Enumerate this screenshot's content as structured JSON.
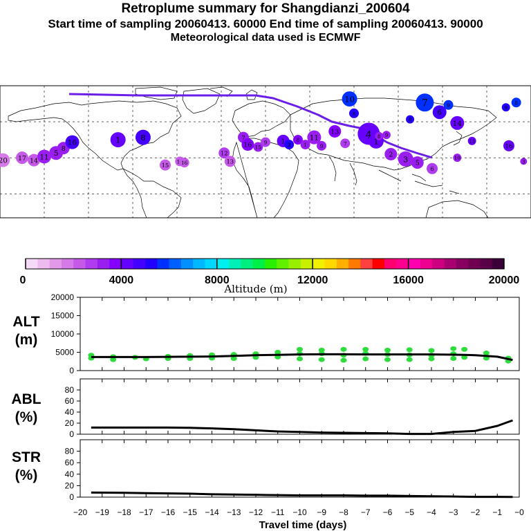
{
  "header": {
    "title": "Retroplume summary for Shangdianzi_200604",
    "sampling_line": "Start time of sampling 20060413. 60000     End time of sampling 20060413. 90000",
    "met_line": "Meteorological data used is ECMWF"
  },
  "colors": {
    "line": "#000000",
    "alt_marker": "#2edc3c",
    "track": "#6a1ee8",
    "colorbar": [
      "#f6d9f6",
      "#eebbee",
      "#e29ae8",
      "#d57ae8",
      "#c55ae8",
      "#b03cef",
      "#9a1eef",
      "#8400ff",
      "#6600ff",
      "#4400ff",
      "#2200ff",
      "#0030ff",
      "#0060ff",
      "#0090ff",
      "#00b8ff",
      "#00d8ff",
      "#00f0f0",
      "#00f0b8",
      "#00f080",
      "#00f048",
      "#28f000",
      "#60f000",
      "#98f000",
      "#c8f000",
      "#f0f000",
      "#ffd800",
      "#ffb000",
      "#ff7800",
      "#ff4040",
      "#ff0000",
      "#ff0070",
      "#ff0090",
      "#ff00b0",
      "#ee0090",
      "#cc0080",
      "#a80070",
      "#880060",
      "#700050",
      "#5a0048",
      "#3c0038"
    ]
  },
  "map": {
    "markers": [
      {
        "label": "20",
        "lon": -178,
        "lat": 28,
        "alt": 1800,
        "size": 10
      },
      {
        "label": "17",
        "lon": -165,
        "lat": 30,
        "alt": 2200,
        "size": 9
      },
      {
        "label": "14",
        "lon": -157,
        "lat": 28,
        "alt": 2400,
        "size": 9
      },
      {
        "label": "11",
        "lon": -150,
        "lat": 31,
        "alt": 3000,
        "size": 10
      },
      {
        "label": "5",
        "lon": -142,
        "lat": 34,
        "alt": 3200,
        "size": 10
      },
      {
        "label": "8",
        "lon": -137,
        "lat": 38,
        "alt": 3400,
        "size": 9
      },
      {
        "label": "16",
        "lon": -131,
        "lat": 43,
        "alt": 4500,
        "size": 10
      },
      {
        "label": "1",
        "lon": -100,
        "lat": 45,
        "alt": 4200,
        "size": 11
      },
      {
        "label": "8",
        "lon": -83,
        "lat": 47,
        "alt": 4600,
        "size": 11
      },
      {
        "label": "15",
        "lon": -68,
        "lat": 24,
        "alt": 2200,
        "size": 8
      },
      {
        "label": "17",
        "lon": -58,
        "lat": 27,
        "alt": 2400,
        "size": 7
      },
      {
        "label": "16",
        "lon": -55,
        "lat": 26,
        "alt": 2200,
        "size": 7
      },
      {
        "label": "12",
        "lon": -28,
        "lat": 34,
        "alt": 2600,
        "size": 8
      },
      {
        "label": "13",
        "lon": -24,
        "lat": 27,
        "alt": 2300,
        "size": 8
      },
      {
        "label": "7",
        "lon": -15,
        "lat": 47,
        "alt": 3400,
        "size": 8
      },
      {
        "label": "16",
        "lon": -12,
        "lat": 41,
        "alt": 3600,
        "size": 9
      },
      {
        "label": "15",
        "lon": -5,
        "lat": 39,
        "alt": 3000,
        "size": 7
      },
      {
        "label": "9",
        "lon": 0,
        "lat": 43,
        "alt": 2800,
        "size": 7
      },
      {
        "label": "1",
        "lon": 12,
        "lat": 44,
        "alt": 4400,
        "size": 9
      },
      {
        "label": "3",
        "lon": 16,
        "lat": 41,
        "alt": 5200,
        "size": 7
      },
      {
        "label": "8",
        "lon": 22,
        "lat": 45,
        "alt": 3600,
        "size": 7
      },
      {
        "label": "1",
        "lon": 27,
        "lat": 41,
        "alt": 3400,
        "size": 7
      },
      {
        "label": "11",
        "lon": 33,
        "lat": 47,
        "alt": 3000,
        "size": 10
      },
      {
        "label": "9",
        "lon": 38,
        "lat": 40,
        "alt": 3200,
        "size": 7
      },
      {
        "label": "13",
        "lon": 47,
        "lat": 52,
        "alt": 3600,
        "size": 9
      },
      {
        "label": "7",
        "lon": 54,
        "lat": 42,
        "alt": 2800,
        "size": 7
      },
      {
        "label": "10",
        "lon": 57,
        "lat": 79,
        "alt": 5600,
        "size": 11
      },
      {
        "label": "8",
        "lon": 60,
        "lat": 67,
        "alt": 5000,
        "size": 7
      },
      {
        "label": "4",
        "lon": 70,
        "lat": 50,
        "alt": 4300,
        "size": 16
      },
      {
        "label": "1",
        "lon": 75,
        "lat": 44,
        "alt": 4000,
        "size": 11
      },
      {
        "label": "8",
        "lon": 77,
        "lat": 48,
        "alt": 3200,
        "size": 6
      },
      {
        "label": "9",
        "lon": 82,
        "lat": 49,
        "alt": 3000,
        "size": 6
      },
      {
        "label": "2",
        "lon": 85,
        "lat": 33,
        "alt": 3000,
        "size": 9
      },
      {
        "label": "3",
        "lon": 95,
        "lat": 29,
        "alt": 3200,
        "size": 11
      },
      {
        "label": "5",
        "lon": 103,
        "lat": 26,
        "alt": 3000,
        "size": 9
      },
      {
        "label": "8",
        "lon": 98,
        "lat": 62,
        "alt": 5400,
        "size": 6
      },
      {
        "label": "7",
        "lon": 108,
        "lat": 76,
        "alt": 5800,
        "size": 13
      },
      {
        "label": "6",
        "lon": 118,
        "lat": 68,
        "alt": 4600,
        "size": 10
      },
      {
        "label": "9",
        "lon": 124,
        "lat": 74,
        "alt": 5600,
        "size": 7
      },
      {
        "label": "14",
        "lon": 130,
        "lat": 59,
        "alt": 4400,
        "size": 10
      },
      {
        "label": "10",
        "lon": 130,
        "lat": 30,
        "alt": 3200,
        "size": 6
      },
      {
        "label": "13",
        "lon": 140,
        "lat": 44,
        "alt": 4200,
        "size": 6
      },
      {
        "label": "8",
        "lon": 170,
        "lat": 76,
        "alt": 5800,
        "size": 7
      },
      {
        "label": "9",
        "lon": 163,
        "lat": 72,
        "alt": 5400,
        "size": 6
      },
      {
        "label": "16",
        "lon": 165,
        "lat": 40,
        "alt": 4000,
        "size": 8
      },
      {
        "label": "3",
        "lon": 175,
        "lat": 27,
        "alt": 3200,
        "size": 5
      },
      {
        "label": "6",
        "lon": 113,
        "lat": 21,
        "alt": 2800,
        "size": 8
      }
    ]
  },
  "colorbar": {
    "min": 0,
    "max": 20000,
    "ticks": [
      "0",
      "4000",
      "8000",
      "12000",
      "16000",
      "20000"
    ],
    "label": "Altitude (m)"
  },
  "chart_data": [
    {
      "type": "line",
      "title": "ALT (m)",
      "title_parts": [
        "ALT",
        "(m)"
      ],
      "ylabel": "ALT (m)",
      "ylim": [
        0,
        20000
      ],
      "yticks": [
        "20000",
        "15000",
        "10000",
        "5000",
        "0"
      ],
      "x": [
        -19.5,
        -18,
        -17,
        -16,
        -15,
        -14,
        -13,
        -12,
        -11,
        -10,
        -9,
        -8,
        -7,
        -6,
        -5,
        -4,
        -3,
        -2.5,
        -2,
        -1,
        -0.3
      ],
      "series": [
        {
          "name": "mean altitude",
          "values": [
            3700,
            3700,
            3700,
            3750,
            3800,
            3850,
            4000,
            4200,
            4300,
            4400,
            4450,
            4450,
            4400,
            4400,
            4400,
            4400,
            4350,
            4300,
            4200,
            3800,
            2900
          ]
        }
      ],
      "scatter_points": [
        {
          "x": -19.5,
          "y": 3400
        },
        {
          "x": -19.5,
          "y": 4200
        },
        {
          "x": -18.5,
          "y": 3000
        },
        {
          "x": -18.5,
          "y": 3800
        },
        {
          "x": -17.5,
          "y": 3600
        },
        {
          "x": -17,
          "y": 3200
        },
        {
          "x": -16,
          "y": 3900
        },
        {
          "x": -16,
          "y": 3300
        },
        {
          "x": -15,
          "y": 4100
        },
        {
          "x": -15,
          "y": 3300
        },
        {
          "x": -14,
          "y": 4300
        },
        {
          "x": -14,
          "y": 3400
        },
        {
          "x": -13,
          "y": 4400
        },
        {
          "x": -13,
          "y": 3300
        },
        {
          "x": -12,
          "y": 4600
        },
        {
          "x": -12,
          "y": 3600
        },
        {
          "x": -11,
          "y": 5000
        },
        {
          "x": -11,
          "y": 3700
        },
        {
          "x": -10,
          "y": 5800
        },
        {
          "x": -10,
          "y": 4600
        },
        {
          "x": -10,
          "y": 3200
        },
        {
          "x": -9,
          "y": 5600
        },
        {
          "x": -9,
          "y": 4600
        },
        {
          "x": -9,
          "y": 3000
        },
        {
          "x": -8,
          "y": 5800
        },
        {
          "x": -8,
          "y": 4200
        },
        {
          "x": -8,
          "y": 2800
        },
        {
          "x": -7,
          "y": 5800
        },
        {
          "x": -7,
          "y": 4700
        },
        {
          "x": -7,
          "y": 3200
        },
        {
          "x": -6,
          "y": 5600
        },
        {
          "x": -6,
          "y": 4400
        },
        {
          "x": -6,
          "y": 3000
        },
        {
          "x": -5,
          "y": 5700
        },
        {
          "x": -5,
          "y": 4300
        },
        {
          "x": -5,
          "y": 3000
        },
        {
          "x": -4,
          "y": 5500
        },
        {
          "x": -4,
          "y": 4200
        },
        {
          "x": -4,
          "y": 3200
        },
        {
          "x": -3,
          "y": 6000
        },
        {
          "x": -3,
          "y": 4600
        },
        {
          "x": -3,
          "y": 3300
        },
        {
          "x": -2.5,
          "y": 5800
        },
        {
          "x": -2.5,
          "y": 3600
        },
        {
          "x": -1.5,
          "y": 4800
        },
        {
          "x": -1.5,
          "y": 3400
        },
        {
          "x": -0.5,
          "y": 3400
        },
        {
          "x": -0.5,
          "y": 2600
        }
      ]
    },
    {
      "type": "line",
      "title": "ABL (%)",
      "title_parts": [
        "ABL",
        "(%)"
      ],
      "ylabel": "ABL (%)",
      "ylim": [
        0,
        100
      ],
      "yticks": [
        "80",
        "60",
        "40",
        "20",
        "0"
      ],
      "x": [
        -19.5,
        -18,
        -17,
        -16,
        -15,
        -14,
        -13,
        -12,
        -11,
        -10,
        -9,
        -8,
        -7,
        -6,
        -5,
        -4,
        -3,
        -2.5,
        -2,
        -1,
        -0.3
      ],
      "series": [
        {
          "name": "ABL fraction",
          "values": [
            12,
            12,
            12,
            12,
            11.5,
            10.5,
            9,
            7,
            5,
            4,
            3,
            2.5,
            2,
            1.5,
            0.5,
            0.5,
            4,
            5,
            6,
            15,
            25
          ]
        }
      ]
    },
    {
      "type": "line",
      "title": "STR (%)",
      "title_parts": [
        "STR",
        "(%)"
      ],
      "ylabel": "STR (%)",
      "ylim": [
        0,
        100
      ],
      "yticks": [
        "80",
        "60",
        "40",
        "20",
        "0"
      ],
      "xlabel": "Travel time (days)",
      "xlim": [
        -20,
        0
      ],
      "xticks": [
        "−20",
        "−19",
        "−18",
        "−17",
        "−16",
        "−15",
        "−14",
        "−13",
        "−12",
        "−11",
        "−10",
        "−9",
        "−8",
        "−7",
        "−6",
        "−5",
        "−4",
        "−3",
        "−2",
        "−1",
        "−0"
      ],
      "x": [
        -19.5,
        -18,
        -17,
        -16,
        -15,
        -14,
        -13,
        -12,
        -11,
        -10,
        -9,
        -8,
        -7,
        -6,
        -5,
        -4,
        -3,
        -2,
        -1,
        -0.3
      ],
      "series": [
        {
          "name": "stratospheric fraction",
          "values": [
            8,
            7.5,
            7,
            6.5,
            6,
            5,
            4.5,
            4,
            3.5,
            3,
            3,
            3,
            2.5,
            2.5,
            2,
            1.5,
            1,
            0.5,
            0.5,
            0.3
          ]
        }
      ]
    }
  ]
}
